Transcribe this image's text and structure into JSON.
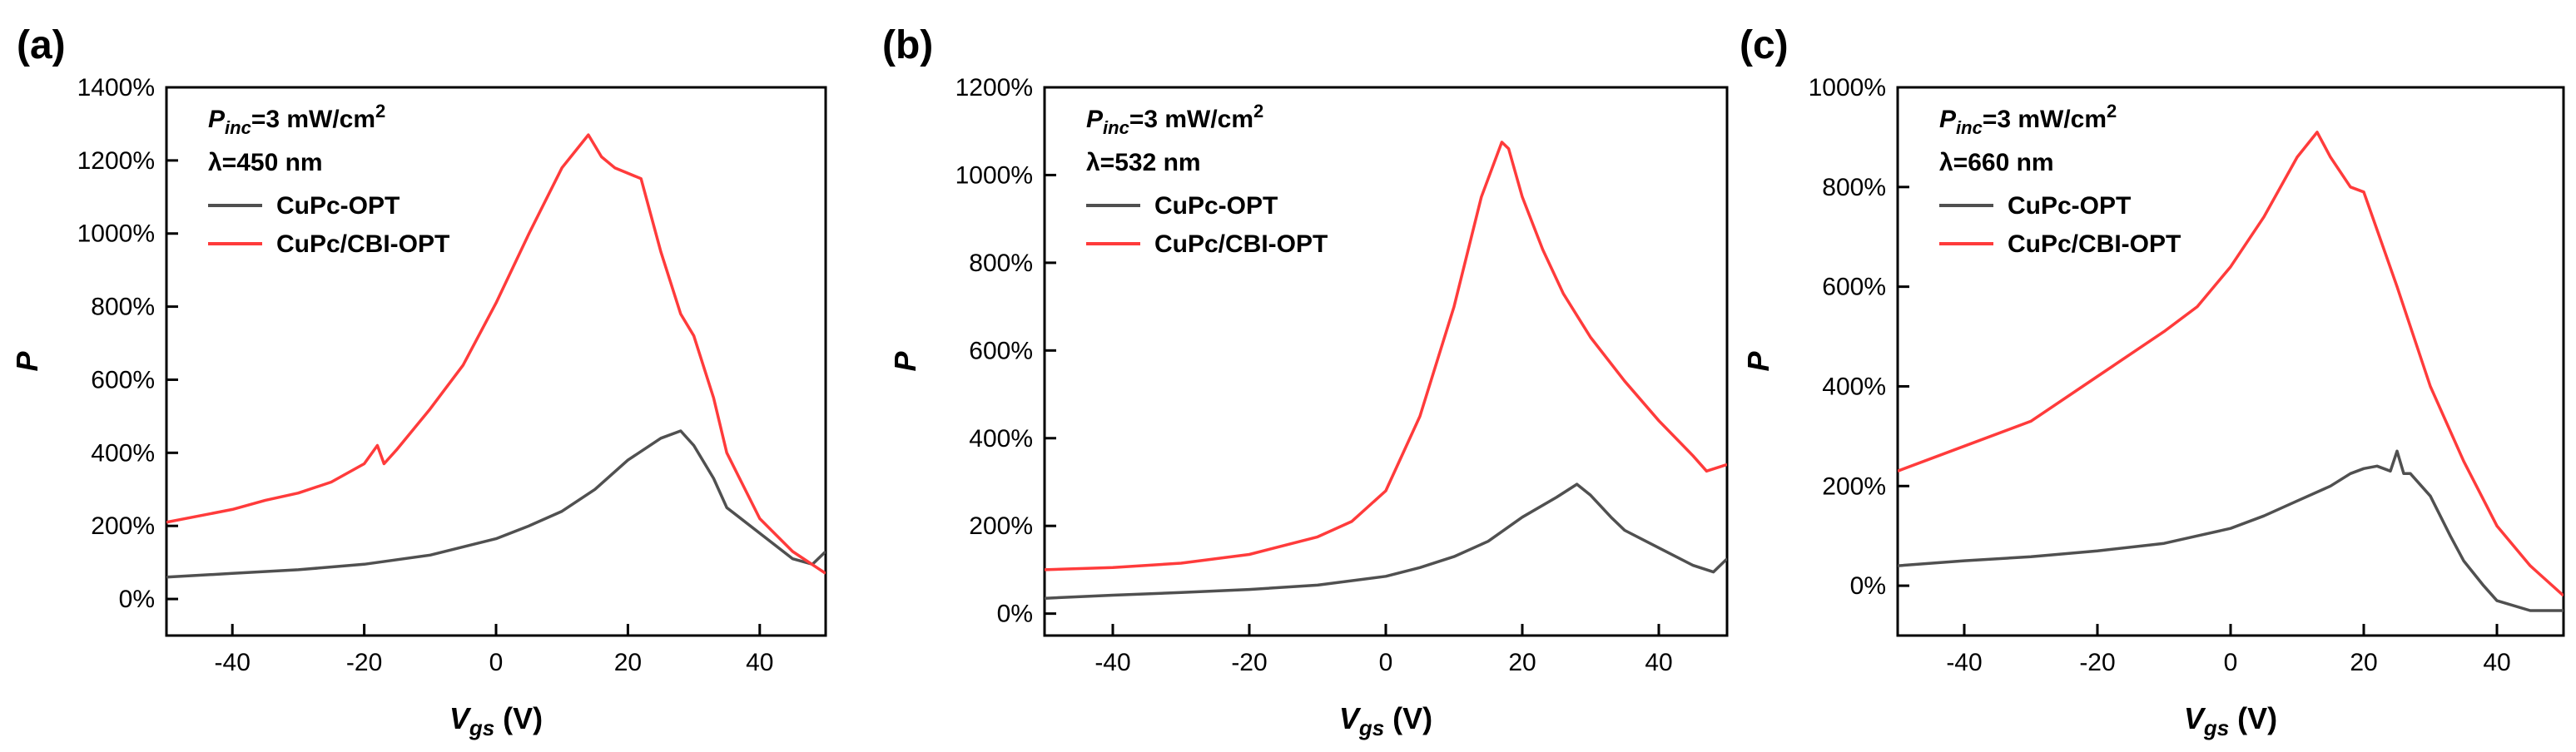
{
  "chart_data": [
    {
      "type": "line",
      "panel_label": "(a)",
      "xlabel": "V",
      "xlabel_sub": "gs",
      "xlabel_unit": " (V)",
      "ylabel": "P",
      "xlim": [
        -50,
        50
      ],
      "ylim": [
        -100,
        1400
      ],
      "xticks": [
        -40,
        -20,
        0,
        20,
        40
      ],
      "xtick_labels": [
        "-40",
        "-20",
        "0",
        "20",
        "40"
      ],
      "yticks": [
        0,
        200,
        400,
        600,
        800,
        1000,
        1200,
        1400
      ],
      "ytick_labels": [
        "0%",
        "200%",
        "400%",
        "600%",
        "800%",
        "1000%",
        "1200%",
        "1400%"
      ],
      "annotation": {
        "p_main": "P",
        "p_sub": "inc",
        "p_rest": "=3 mW/cm",
        "p_sup": "2",
        "wavelength": "λ=450 nm"
      },
      "legend_position": "top-left",
      "series": [
        {
          "name": "CuPc-OPT",
          "color": "#505050",
          "x": [
            -50,
            -40,
            -30,
            -20,
            -10,
            0,
            5,
            10,
            15,
            20,
            25,
            28,
            30,
            33,
            35,
            40,
            45,
            48,
            50
          ],
          "y": [
            60,
            70,
            80,
            95,
            120,
            165,
            200,
            240,
            300,
            380,
            440,
            460,
            420,
            330,
            250,
            180,
            110,
            95,
            130
          ]
        },
        {
          "name": "CuPc/CBI-OPT",
          "color": "#ff3b3b",
          "x": [
            -50,
            -40,
            -35,
            -30,
            -25,
            -20,
            -18,
            -17,
            -15,
            -10,
            -5,
            0,
            5,
            10,
            14,
            16,
            18,
            22,
            25,
            28,
            30,
            33,
            35,
            40,
            45,
            50
          ],
          "y": [
            210,
            245,
            270,
            290,
            320,
            370,
            420,
            370,
            410,
            520,
            640,
            810,
            1000,
            1180,
            1270,
            1210,
            1180,
            1150,
            950,
            780,
            720,
            550,
            400,
            220,
            130,
            70
          ]
        }
      ]
    },
    {
      "type": "line",
      "panel_label": "(b)",
      "xlabel": "V",
      "xlabel_sub": "gs",
      "xlabel_unit": " (V)",
      "ylabel": "P",
      "xlim": [
        -50,
        50
      ],
      "ylim": [
        -50,
        1200
      ],
      "xticks": [
        -40,
        -20,
        0,
        20,
        40
      ],
      "xtick_labels": [
        "-40",
        "-20",
        "0",
        "20",
        "40"
      ],
      "yticks": [
        0,
        200,
        400,
        600,
        800,
        1000,
        1200
      ],
      "ytick_labels": [
        "0%",
        "200%",
        "400%",
        "600%",
        "800%",
        "1000%",
        "1200%"
      ],
      "annotation": {
        "p_main": "P",
        "p_sub": "inc",
        "p_rest": "=3 mW/cm",
        "p_sup": "2",
        "wavelength": "λ=532 nm"
      },
      "legend_position": "top-left",
      "series": [
        {
          "name": "CuPc-OPT",
          "color": "#505050",
          "x": [
            -50,
            -40,
            -30,
            -20,
            -10,
            0,
            5,
            10,
            15,
            20,
            25,
            28,
            30,
            33,
            35,
            40,
            45,
            48,
            50
          ],
          "y": [
            35,
            42,
            48,
            55,
            65,
            85,
            105,
            130,
            165,
            220,
            265,
            295,
            270,
            220,
            190,
            150,
            110,
            95,
            125
          ]
        },
        {
          "name": "CuPc/CBI-OPT",
          "color": "#ff3b3b",
          "x": [
            -50,
            -40,
            -30,
            -20,
            -10,
            -5,
            0,
            5,
            10,
            14,
            17,
            18,
            20,
            23,
            26,
            30,
            35,
            40,
            45,
            47,
            50
          ],
          "y": [
            100,
            105,
            115,
            135,
            175,
            210,
            280,
            450,
            700,
            950,
            1075,
            1060,
            950,
            830,
            730,
            630,
            530,
            440,
            360,
            325,
            340
          ]
        }
      ]
    },
    {
      "type": "line",
      "panel_label": "(c)",
      "xlabel": "V",
      "xlabel_sub": "gs",
      "xlabel_unit": " (V)",
      "ylabel": "P",
      "xlim": [
        -50,
        50
      ],
      "ylim": [
        -100,
        1000
      ],
      "xticks": [
        -40,
        -20,
        0,
        20,
        40
      ],
      "xtick_labels": [
        "-40",
        "-20",
        "0",
        "20",
        "40"
      ],
      "yticks": [
        0,
        200,
        400,
        600,
        800,
        1000
      ],
      "ytick_labels": [
        "0%",
        "200%",
        "400%",
        "600%",
        "800%",
        "1000%"
      ],
      "annotation": {
        "p_main": "P",
        "p_sub": "inc",
        "p_rest": "=3 mW/cm",
        "p_sup": "2",
        "wavelength": "λ=660 nm"
      },
      "legend_position": "top-left",
      "series": [
        {
          "name": "CuPc-OPT",
          "color": "#505050",
          "x": [
            -50,
            -40,
            -30,
            -20,
            -10,
            -5,
            0,
            5,
            10,
            15,
            18,
            20,
            22,
            24,
            25,
            26,
            27,
            30,
            33,
            35,
            38,
            40,
            45,
            50
          ],
          "y": [
            40,
            50,
            58,
            70,
            85,
            100,
            115,
            140,
            170,
            200,
            225,
            235,
            240,
            230,
            270,
            225,
            225,
            180,
            100,
            50,
            0,
            -30,
            -50,
            -50
          ]
        },
        {
          "name": "CuPc/CBI-OPT",
          "color": "#ff3b3b",
          "x": [
            -50,
            -40,
            -30,
            -20,
            -10,
            -5,
            0,
            5,
            10,
            13,
            15,
            18,
            20,
            25,
            30,
            35,
            40,
            45,
            50
          ],
          "y": [
            230,
            280,
            330,
            420,
            510,
            560,
            640,
            740,
            860,
            910,
            860,
            800,
            790,
            600,
            400,
            250,
            120,
            40,
            -20
          ]
        }
      ]
    }
  ]
}
